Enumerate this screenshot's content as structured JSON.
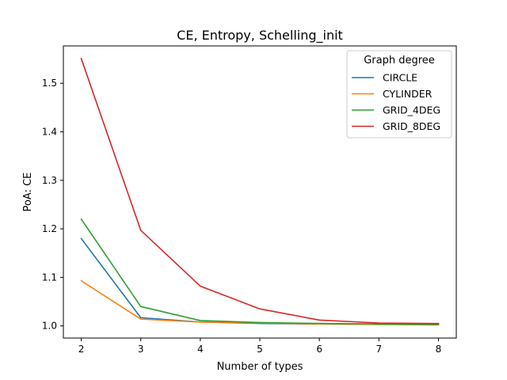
{
  "chart_data": {
    "type": "line",
    "title": "CE, Entropy, Schelling_init",
    "xlabel": "Number of types",
    "ylabel": "PoA: CE",
    "x": [
      2,
      3,
      4,
      5,
      6,
      7,
      8
    ],
    "xlim": [
      1.7,
      8.3
    ],
    "ylim": [
      0.975,
      1.577
    ],
    "xticks": [
      "2",
      "3",
      "4",
      "5",
      "6",
      "7",
      "8"
    ],
    "yticks": [
      "1.0",
      "1.1",
      "1.2",
      "1.3",
      "1.4",
      "1.5"
    ],
    "grid": false,
    "legend": {
      "title": "Graph degree",
      "position": "top-right"
    },
    "series": [
      {
        "name": "CIRCLE",
        "color": "#1f77b4",
        "values": [
          1.18,
          1.017,
          1.008,
          1.005,
          1.004,
          1.003,
          1.003
        ]
      },
      {
        "name": "CYLINDER",
        "color": "#ff7f0e",
        "values": [
          1.093,
          1.014,
          1.008,
          1.006,
          1.004,
          1.003,
          1.002
        ]
      },
      {
        "name": "GRID_4DEG",
        "color": "#2ca02c",
        "values": [
          1.22,
          1.04,
          1.011,
          1.007,
          1.005,
          1.004,
          1.003
        ]
      },
      {
        "name": "GRID_8DEG",
        "color": "#d62728",
        "values": [
          1.551,
          1.197,
          1.082,
          1.035,
          1.012,
          1.006,
          1.005
        ]
      }
    ]
  }
}
